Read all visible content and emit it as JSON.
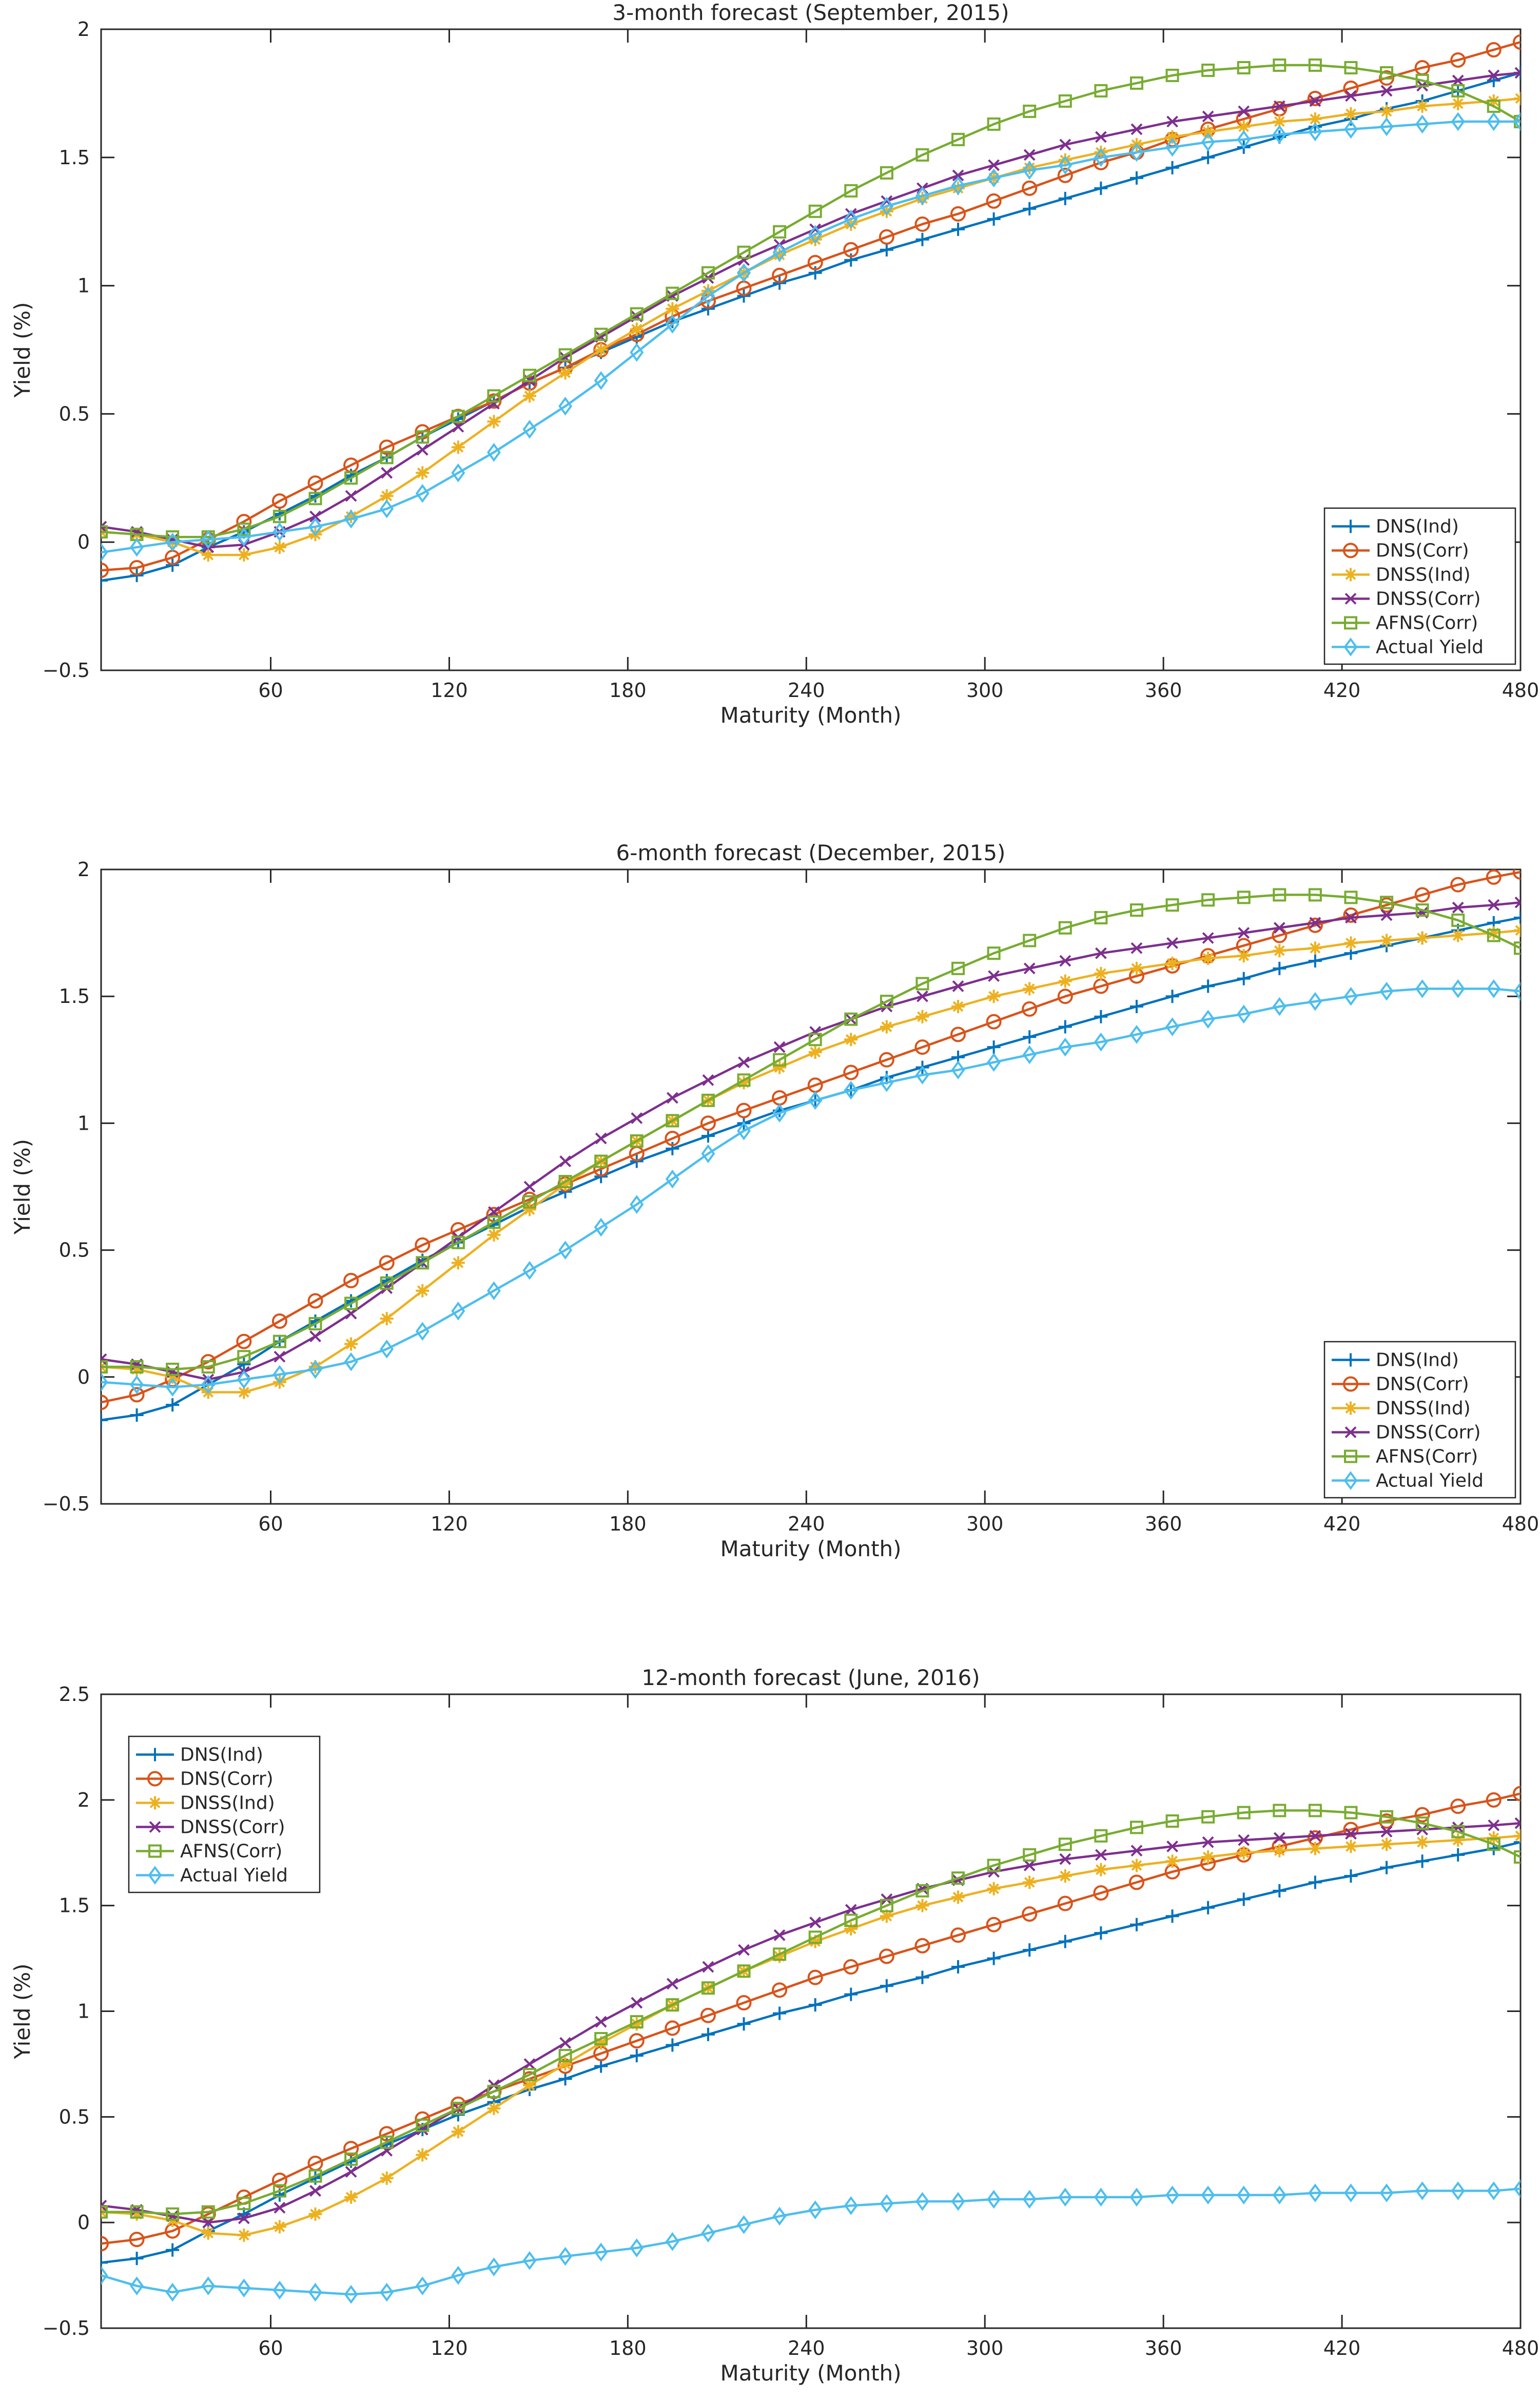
{
  "chart_data": [
    {
      "type": "line",
      "title": "3-month forecast (September, 2015)",
      "xlabel": "Maturity (Month)",
      "ylabel": "Yield (%)",
      "xlim": [
        3,
        480
      ],
      "ylim": [
        -0.5,
        2
      ],
      "xticks": [
        60,
        120,
        180,
        240,
        300,
        360,
        420,
        480
      ],
      "xtick_labels": [
        "60",
        "120",
        "180",
        "240",
        "300",
        "360",
        "420",
        "480"
      ],
      "yticks": [
        -0.5,
        0,
        0.5,
        1,
        1.5,
        2
      ],
      "ytick_labels": [
        "−0.5",
        "0",
        "0.5",
        "1",
        "1.5",
        "2"
      ],
      "legend_position": "lower-right",
      "x": [
        3,
        15,
        27,
        39,
        51,
        63,
        75,
        87,
        99,
        111,
        123,
        135,
        147,
        159,
        171,
        183,
        195,
        207,
        219,
        231,
        243,
        255,
        267,
        279,
        291,
        303,
        315,
        327,
        339,
        351,
        363,
        375,
        387,
        399,
        411,
        423,
        435,
        447,
        459,
        471,
        480
      ],
      "series": [
        {
          "name": "DNS(Ind)",
          "color": "#0072BD",
          "marker": "plus",
          "values": [
            -0.15,
            -0.13,
            -0.09,
            -0.02,
            0.04,
            0.11,
            0.18,
            0.26,
            0.33,
            0.41,
            0.48,
            0.55,
            0.62,
            0.68,
            0.74,
            0.8,
            0.86,
            0.91,
            0.96,
            1.01,
            1.05,
            1.1,
            1.14,
            1.18,
            1.22,
            1.26,
            1.3,
            1.34,
            1.38,
            1.42,
            1.46,
            1.5,
            1.54,
            1.58,
            1.62,
            1.65,
            1.69,
            1.72,
            1.76,
            1.8,
            1.83
          ]
        },
        {
          "name": "DNS(Corr)",
          "color": "#D95319",
          "marker": "circle",
          "values": [
            -0.11,
            -0.1,
            -0.06,
            0.01,
            0.08,
            0.16,
            0.23,
            0.3,
            0.37,
            0.43,
            0.49,
            0.55,
            0.62,
            0.68,
            0.75,
            0.81,
            0.88,
            0.94,
            0.99,
            1.04,
            1.09,
            1.14,
            1.19,
            1.24,
            1.28,
            1.33,
            1.38,
            1.43,
            1.48,
            1.52,
            1.57,
            1.61,
            1.65,
            1.69,
            1.73,
            1.77,
            1.81,
            1.85,
            1.88,
            1.92,
            1.95
          ]
        },
        {
          "name": "DNSS(Ind)",
          "color": "#EDB120",
          "marker": "asterisk",
          "values": [
            0.04,
            0.03,
            0.0,
            -0.05,
            -0.05,
            -0.02,
            0.03,
            0.1,
            0.18,
            0.27,
            0.37,
            0.47,
            0.57,
            0.66,
            0.75,
            0.83,
            0.91,
            0.98,
            1.05,
            1.12,
            1.18,
            1.24,
            1.29,
            1.34,
            1.38,
            1.42,
            1.46,
            1.49,
            1.52,
            1.55,
            1.58,
            1.6,
            1.62,
            1.64,
            1.65,
            1.67,
            1.68,
            1.7,
            1.71,
            1.72,
            1.73
          ]
        },
        {
          "name": "DNSS(Corr)",
          "color": "#7E2F8E",
          "marker": "x",
          "values": [
            0.06,
            0.04,
            0.01,
            -0.02,
            -0.01,
            0.04,
            0.1,
            0.18,
            0.27,
            0.36,
            0.45,
            0.54,
            0.63,
            0.72,
            0.8,
            0.88,
            0.96,
            1.03,
            1.1,
            1.16,
            1.22,
            1.28,
            1.33,
            1.38,
            1.43,
            1.47,
            1.51,
            1.55,
            1.58,
            1.61,
            1.64,
            1.66,
            1.68,
            1.7,
            1.72,
            1.74,
            1.76,
            1.78,
            1.8,
            1.82,
            1.83
          ]
        },
        {
          "name": "AFNS(Corr)",
          "color": "#77AC30",
          "marker": "square",
          "values": [
            0.04,
            0.03,
            0.02,
            0.02,
            0.05,
            0.1,
            0.17,
            0.25,
            0.33,
            0.41,
            0.49,
            0.57,
            0.65,
            0.73,
            0.81,
            0.89,
            0.97,
            1.05,
            1.13,
            1.21,
            1.29,
            1.37,
            1.44,
            1.51,
            1.57,
            1.63,
            1.68,
            1.72,
            1.76,
            1.79,
            1.82,
            1.84,
            1.85,
            1.86,
            1.86,
            1.85,
            1.83,
            1.8,
            1.76,
            1.7,
            1.64
          ]
        },
        {
          "name": "Actual Yield",
          "color": "#4DBEEE",
          "marker": "diamond",
          "values": [
            -0.04,
            -0.02,
            0.0,
            0.01,
            0.02,
            0.04,
            0.06,
            0.09,
            0.13,
            0.19,
            0.27,
            0.35,
            0.44,
            0.53,
            0.63,
            0.74,
            0.85,
            0.96,
            1.05,
            1.13,
            1.2,
            1.26,
            1.31,
            1.35,
            1.39,
            1.42,
            1.45,
            1.47,
            1.5,
            1.52,
            1.54,
            1.56,
            1.57,
            1.59,
            1.6,
            1.61,
            1.62,
            1.63,
            1.64,
            1.64,
            1.64
          ]
        }
      ]
    },
    {
      "type": "line",
      "title": "6-month forecast (December, 2015)",
      "xlabel": "Maturity (Month)",
      "ylabel": "Yield (%)",
      "xlim": [
        3,
        480
      ],
      "ylim": [
        -0.5,
        2
      ],
      "xticks": [
        60,
        120,
        180,
        240,
        300,
        360,
        420,
        480
      ],
      "xtick_labels": [
        "60",
        "120",
        "180",
        "240",
        "300",
        "360",
        "420",
        "480"
      ],
      "yticks": [
        -0.5,
        0,
        0.5,
        1,
        1.5,
        2
      ],
      "ytick_labels": [
        "−0.5",
        "0",
        "0.5",
        "1",
        "1.5",
        "2"
      ],
      "legend_position": "lower-right",
      "x": [
        3,
        15,
        27,
        39,
        51,
        63,
        75,
        87,
        99,
        111,
        123,
        135,
        147,
        159,
        171,
        183,
        195,
        207,
        219,
        231,
        243,
        255,
        267,
        279,
        291,
        303,
        315,
        327,
        339,
        351,
        363,
        375,
        387,
        399,
        411,
        423,
        435,
        447,
        459,
        471,
        480
      ],
      "series": [
        {
          "name": "DNS(Ind)",
          "color": "#0072BD",
          "marker": "plus",
          "values": [
            -0.17,
            -0.15,
            -0.11,
            -0.03,
            0.05,
            0.14,
            0.22,
            0.3,
            0.38,
            0.46,
            0.53,
            0.6,
            0.67,
            0.73,
            0.79,
            0.85,
            0.9,
            0.95,
            1.0,
            1.05,
            1.09,
            1.13,
            1.18,
            1.22,
            1.26,
            1.3,
            1.34,
            1.38,
            1.42,
            1.46,
            1.5,
            1.54,
            1.57,
            1.61,
            1.64,
            1.67,
            1.7,
            1.73,
            1.76,
            1.79,
            1.81
          ]
        },
        {
          "name": "DNS(Corr)",
          "color": "#D95319",
          "marker": "circle",
          "values": [
            -0.1,
            -0.07,
            -0.01,
            0.06,
            0.14,
            0.22,
            0.3,
            0.38,
            0.45,
            0.52,
            0.58,
            0.64,
            0.7,
            0.76,
            0.82,
            0.88,
            0.94,
            1.0,
            1.05,
            1.1,
            1.15,
            1.2,
            1.25,
            1.3,
            1.35,
            1.4,
            1.45,
            1.5,
            1.54,
            1.58,
            1.62,
            1.66,
            1.7,
            1.74,
            1.78,
            1.82,
            1.86,
            1.9,
            1.94,
            1.97,
            1.99
          ]
        },
        {
          "name": "DNSS(Ind)",
          "color": "#EDB120",
          "marker": "asterisk",
          "values": [
            0.04,
            0.03,
            0.0,
            -0.06,
            -0.06,
            -0.02,
            0.04,
            0.13,
            0.23,
            0.34,
            0.45,
            0.56,
            0.66,
            0.76,
            0.85,
            0.93,
            1.01,
            1.09,
            1.16,
            1.22,
            1.28,
            1.33,
            1.38,
            1.42,
            1.46,
            1.5,
            1.53,
            1.56,
            1.59,
            1.61,
            1.63,
            1.65,
            1.66,
            1.68,
            1.69,
            1.71,
            1.72,
            1.73,
            1.74,
            1.75,
            1.76
          ]
        },
        {
          "name": "DNSS(Corr)",
          "color": "#7E2F8E",
          "marker": "x",
          "values": [
            0.07,
            0.05,
            0.02,
            -0.01,
            0.02,
            0.08,
            0.16,
            0.25,
            0.35,
            0.45,
            0.55,
            0.65,
            0.75,
            0.85,
            0.94,
            1.02,
            1.1,
            1.17,
            1.24,
            1.3,
            1.36,
            1.41,
            1.46,
            1.5,
            1.54,
            1.58,
            1.61,
            1.64,
            1.67,
            1.69,
            1.71,
            1.73,
            1.75,
            1.77,
            1.79,
            1.81,
            1.82,
            1.83,
            1.85,
            1.86,
            1.87
          ]
        },
        {
          "name": "AFNS(Corr)",
          "color": "#77AC30",
          "marker": "square",
          "values": [
            0.04,
            0.04,
            0.03,
            0.04,
            0.08,
            0.14,
            0.21,
            0.29,
            0.37,
            0.45,
            0.53,
            0.61,
            0.69,
            0.77,
            0.85,
            0.93,
            1.01,
            1.09,
            1.17,
            1.25,
            1.33,
            1.41,
            1.48,
            1.55,
            1.61,
            1.67,
            1.72,
            1.77,
            1.81,
            1.84,
            1.86,
            1.88,
            1.89,
            1.9,
            1.9,
            1.89,
            1.87,
            1.84,
            1.8,
            1.74,
            1.69
          ]
        },
        {
          "name": "Actual Yield",
          "color": "#4DBEEE",
          "marker": "diamond",
          "values": [
            -0.02,
            -0.03,
            -0.04,
            -0.03,
            -0.01,
            0.01,
            0.03,
            0.06,
            0.11,
            0.18,
            0.26,
            0.34,
            0.42,
            0.5,
            0.59,
            0.68,
            0.78,
            0.88,
            0.97,
            1.04,
            1.09,
            1.13,
            1.16,
            1.19,
            1.21,
            1.24,
            1.27,
            1.3,
            1.32,
            1.35,
            1.38,
            1.41,
            1.43,
            1.46,
            1.48,
            1.5,
            1.52,
            1.53,
            1.53,
            1.53,
            1.52
          ]
        }
      ]
    },
    {
      "type": "line",
      "title": "12-month forecast (June, 2016)",
      "xlabel": "Maturity (Month)",
      "ylabel": "Yield (%)",
      "xlim": [
        3,
        480
      ],
      "ylim": [
        -0.5,
        2.5
      ],
      "xticks": [
        60,
        120,
        180,
        240,
        300,
        360,
        420,
        480
      ],
      "xtick_labels": [
        "60",
        "120",
        "180",
        "240",
        "300",
        "360",
        "420",
        "480"
      ],
      "yticks": [
        -0.5,
        0,
        0.5,
        1,
        1.5,
        2,
        2.5
      ],
      "ytick_labels": [
        "−0.5",
        "0",
        "0.5",
        "1",
        "1.5",
        "2",
        "2.5"
      ],
      "legend_position": "top-left",
      "x": [
        3,
        15,
        27,
        39,
        51,
        63,
        75,
        87,
        99,
        111,
        123,
        135,
        147,
        159,
        171,
        183,
        195,
        207,
        219,
        231,
        243,
        255,
        267,
        279,
        291,
        303,
        315,
        327,
        339,
        351,
        363,
        375,
        387,
        399,
        411,
        423,
        435,
        447,
        459,
        471,
        480
      ],
      "series": [
        {
          "name": "DNS(Ind)",
          "color": "#0072BD",
          "marker": "plus",
          "values": [
            -0.19,
            -0.17,
            -0.13,
            -0.04,
            0.04,
            0.13,
            0.21,
            0.29,
            0.37,
            0.44,
            0.51,
            0.57,
            0.63,
            0.68,
            0.74,
            0.79,
            0.84,
            0.89,
            0.94,
            0.99,
            1.03,
            1.08,
            1.12,
            1.16,
            1.21,
            1.25,
            1.29,
            1.33,
            1.37,
            1.41,
            1.45,
            1.49,
            1.53,
            1.57,
            1.61,
            1.64,
            1.68,
            1.71,
            1.74,
            1.77,
            1.8
          ]
        },
        {
          "name": "DNS(Corr)",
          "color": "#D95319",
          "marker": "circle",
          "values": [
            -0.1,
            -0.08,
            -0.04,
            0.04,
            0.12,
            0.2,
            0.28,
            0.35,
            0.42,
            0.49,
            0.56,
            0.62,
            0.68,
            0.74,
            0.8,
            0.86,
            0.92,
            0.98,
            1.04,
            1.1,
            1.16,
            1.21,
            1.26,
            1.31,
            1.36,
            1.41,
            1.46,
            1.51,
            1.56,
            1.61,
            1.66,
            1.7,
            1.74,
            1.78,
            1.82,
            1.86,
            1.9,
            1.93,
            1.97,
            2.0,
            2.03
          ]
        },
        {
          "name": "DNSS(Ind)",
          "color": "#EDB120",
          "marker": "asterisk",
          "values": [
            0.05,
            0.04,
            0.01,
            -0.05,
            -0.06,
            -0.02,
            0.04,
            0.12,
            0.21,
            0.32,
            0.43,
            0.54,
            0.65,
            0.75,
            0.85,
            0.94,
            1.03,
            1.11,
            1.19,
            1.26,
            1.33,
            1.39,
            1.45,
            1.5,
            1.54,
            1.58,
            1.61,
            1.64,
            1.67,
            1.69,
            1.71,
            1.73,
            1.75,
            1.76,
            1.77,
            1.78,
            1.79,
            1.8,
            1.81,
            1.82,
            1.83
          ]
        },
        {
          "name": "DNSS(Corr)",
          "color": "#7E2F8E",
          "marker": "x",
          "values": [
            0.08,
            0.06,
            0.03,
            0.0,
            0.02,
            0.07,
            0.15,
            0.24,
            0.34,
            0.44,
            0.54,
            0.65,
            0.75,
            0.85,
            0.95,
            1.04,
            1.13,
            1.21,
            1.29,
            1.36,
            1.42,
            1.48,
            1.53,
            1.58,
            1.62,
            1.66,
            1.69,
            1.72,
            1.74,
            1.76,
            1.78,
            1.8,
            1.81,
            1.82,
            1.83,
            1.84,
            1.85,
            1.86,
            1.87,
            1.88,
            1.89
          ]
        },
        {
          "name": "AFNS(Corr)",
          "color": "#77AC30",
          "marker": "square",
          "values": [
            0.05,
            0.05,
            0.04,
            0.05,
            0.09,
            0.15,
            0.22,
            0.3,
            0.38,
            0.46,
            0.54,
            0.62,
            0.7,
            0.79,
            0.87,
            0.95,
            1.03,
            1.11,
            1.19,
            1.27,
            1.35,
            1.43,
            1.5,
            1.57,
            1.63,
            1.69,
            1.74,
            1.79,
            1.83,
            1.87,
            1.9,
            1.92,
            1.94,
            1.95,
            1.95,
            1.94,
            1.92,
            1.89,
            1.85,
            1.79,
            1.73
          ]
        },
        {
          "name": "Actual Yield",
          "color": "#4DBEEE",
          "marker": "diamond",
          "values": [
            -0.25,
            -0.3,
            -0.33,
            -0.3,
            -0.31,
            -0.32,
            -0.33,
            -0.34,
            -0.33,
            -0.3,
            -0.25,
            -0.21,
            -0.18,
            -0.16,
            -0.14,
            -0.12,
            -0.09,
            -0.05,
            -0.01,
            0.03,
            0.06,
            0.08,
            0.09,
            0.1,
            0.1,
            0.11,
            0.11,
            0.12,
            0.12,
            0.12,
            0.13,
            0.13,
            0.13,
            0.13,
            0.14,
            0.14,
            0.14,
            0.15,
            0.15,
            0.15,
            0.16
          ]
        }
      ]
    }
  ]
}
